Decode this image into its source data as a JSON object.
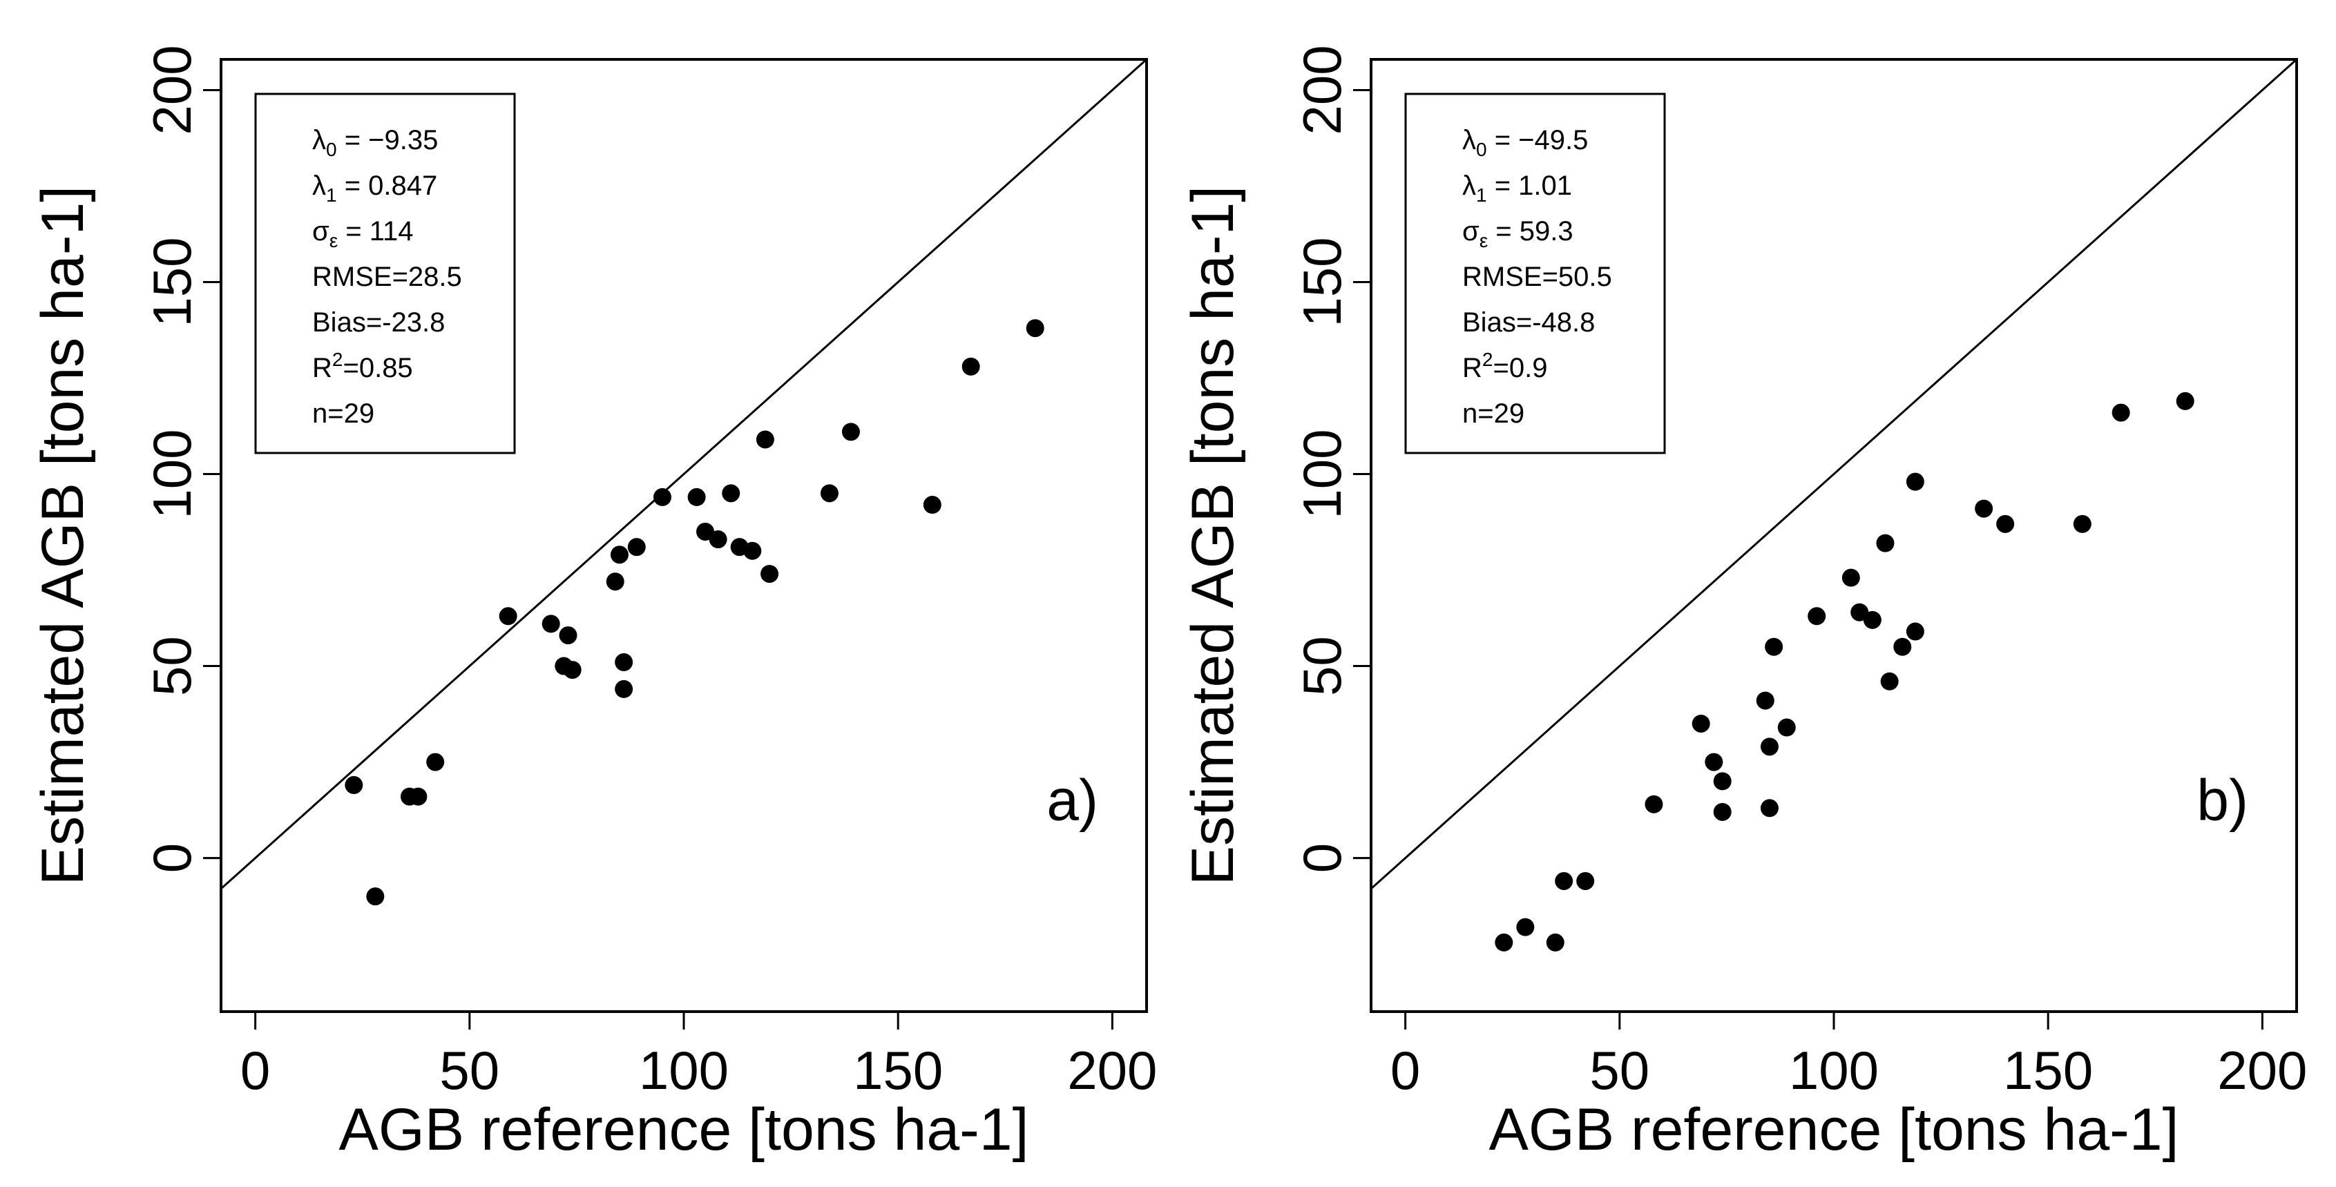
{
  "chart_data": [
    {
      "panel": "a",
      "type": "scatter",
      "tag": "a)",
      "xlabel": "AGB reference [tons ha-1]",
      "ylabel": "Estimated AGB [tons ha-1]",
      "xlim": [
        -8,
        208
      ],
      "ylim": [
        -40,
        208
      ],
      "xticks": [
        0,
        50,
        100,
        150,
        200
      ],
      "yticks": [
        0,
        50,
        100,
        150,
        200
      ],
      "xtick_labels": [
        "0",
        "50",
        "100",
        "150",
        "200"
      ],
      "ytick_labels": [
        "0",
        "50",
        "100",
        "150",
        "200"
      ],
      "reference_line": "1:1",
      "stats": [
        {
          "sym": "λ",
          "sub": "0",
          "sup": "",
          "rest": " = −9.35"
        },
        {
          "sym": "λ",
          "sub": "1",
          "sup": "",
          "rest": " = 0.847"
        },
        {
          "sym": "σ",
          "sub": "ε",
          "sup": "",
          "rest": " = 114"
        },
        {
          "sym": "RMSE=28.5",
          "sub": "",
          "sup": "",
          "rest": ""
        },
        {
          "sym": "Bias=-23.8",
          "sub": "",
          "sup": "",
          "rest": ""
        },
        {
          "sym": "R",
          "sub": "",
          "sup": "2",
          "rest": "=0.85"
        },
        {
          "sym": "n=29",
          "sub": "",
          "sup": "",
          "rest": ""
        }
      ],
      "points": [
        [
          23,
          19
        ],
        [
          28,
          -10
        ],
        [
          36,
          16
        ],
        [
          38,
          16
        ],
        [
          42,
          25
        ],
        [
          59,
          63
        ],
        [
          69,
          61
        ],
        [
          72,
          50
        ],
        [
          73,
          58
        ],
        [
          74,
          49
        ],
        [
          84,
          72
        ],
        [
          85,
          79
        ],
        [
          86,
          51
        ],
        [
          86,
          44
        ],
        [
          89,
          81
        ],
        [
          95,
          94
        ],
        [
          103,
          94
        ],
        [
          105,
          85
        ],
        [
          108,
          83
        ],
        [
          111,
          95
        ],
        [
          113,
          81
        ],
        [
          116,
          80
        ],
        [
          119,
          109
        ],
        [
          120,
          74
        ],
        [
          134,
          95
        ],
        [
          139,
          111
        ],
        [
          158,
          92
        ],
        [
          167,
          128
        ],
        [
          182,
          138
        ]
      ]
    },
    {
      "panel": "b",
      "type": "scatter",
      "tag": "b)",
      "xlabel": "AGB reference [tons ha-1]",
      "ylabel": "Estimated AGB [tons ha-1]",
      "xlim": [
        -8,
        208
      ],
      "ylim": [
        -40,
        208
      ],
      "xticks": [
        0,
        50,
        100,
        150,
        200
      ],
      "yticks": [
        0,
        50,
        100,
        150,
        200
      ],
      "xtick_labels": [
        "0",
        "50",
        "100",
        "150",
        "200"
      ],
      "ytick_labels": [
        "0",
        "50",
        "100",
        "150",
        "200"
      ],
      "reference_line": "1:1",
      "stats": [
        {
          "sym": "λ",
          "sub": "0",
          "sup": "",
          "rest": " = −49.5"
        },
        {
          "sym": "λ",
          "sub": "1",
          "sup": "",
          "rest": " = 1.01"
        },
        {
          "sym": "σ",
          "sub": "ε",
          "sup": "",
          "rest": " = 59.3"
        },
        {
          "sym": "RMSE=50.5",
          "sub": "",
          "sup": "",
          "rest": ""
        },
        {
          "sym": "Bias=-48.8",
          "sub": "",
          "sup": "",
          "rest": ""
        },
        {
          "sym": "R",
          "sub": "",
          "sup": "2",
          "rest": "=0.9"
        },
        {
          "sym": "n=29",
          "sub": "",
          "sup": "",
          "rest": ""
        }
      ],
      "points": [
        [
          23,
          -22
        ],
        [
          28,
          -18
        ],
        [
          35,
          -22
        ],
        [
          37,
          -6
        ],
        [
          42,
          -6
        ],
        [
          58,
          14
        ],
        [
          69,
          35
        ],
        [
          72,
          25
        ],
        [
          74,
          20
        ],
        [
          74,
          12
        ],
        [
          84,
          41
        ],
        [
          85,
          29
        ],
        [
          85,
          13
        ],
        [
          86,
          55
        ],
        [
          89,
          34
        ],
        [
          96,
          63
        ],
        [
          104,
          73
        ],
        [
          106,
          64
        ],
        [
          109,
          62
        ],
        [
          112,
          82
        ],
        [
          113,
          46
        ],
        [
          116,
          55
        ],
        [
          119,
          98
        ],
        [
          119,
          59
        ],
        [
          135,
          91
        ],
        [
          140,
          87
        ],
        [
          158,
          87
        ],
        [
          167,
          116
        ],
        [
          182,
          119
        ]
      ]
    }
  ]
}
